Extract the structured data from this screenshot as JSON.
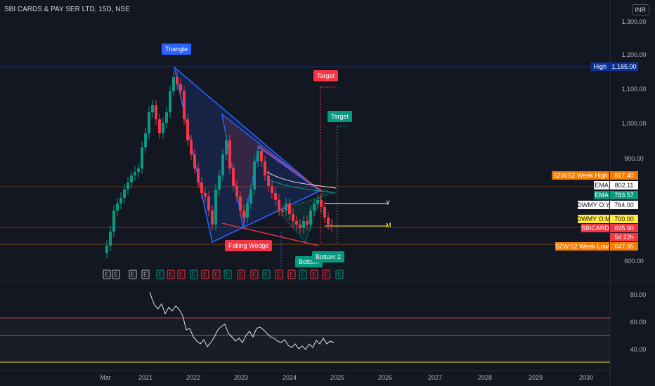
{
  "header": {
    "symbol_title": "SBI CARDS & PAY SER LTD, 15D, NSE",
    "currency": "INR"
  },
  "colors": {
    "background": "#131722",
    "up": "#089981",
    "down": "#f23645",
    "triangle": "#2962ff",
    "wedge": "#f23645",
    "target_red": "#f23645",
    "target_green": "#089981",
    "week52_high": "#f57c00",
    "week52_low": "#f57c00",
    "rsi_line": "#e0e3eb",
    "rsi_upper": "#f23645",
    "rsi_mid": "#4caf50",
    "rsi_lower": "#ffeb3b"
  },
  "price_axis": {
    "ticks": [
      "1,300.00",
      "1,200.00",
      "1,100.00",
      "1,000.00",
      "900.00",
      "600.00"
    ]
  },
  "rsi_axis": {
    "ticks": [
      "80.00",
      "60.00",
      "40.00"
    ]
  },
  "time_axis": {
    "labels": [
      "Mar",
      "2021",
      "2022",
      "2023",
      "2024",
      "2025",
      "2026",
      "2027",
      "2028",
      "2029",
      "2030"
    ]
  },
  "annotations": {
    "triangle": "Triangle",
    "falling_wedge": "Falling Wedge",
    "target_red": "Target",
    "target_green": "Target",
    "bottom1": "Bottom",
    "bottom2": "Bottom 2",
    "y_label": "Y",
    "m_label": "M"
  },
  "earnings_marker": "E",
  "price_labels": [
    {
      "name": "High",
      "value": "1,165.00",
      "color": "#0c3299"
    },
    {
      "name": "52W:52 Week High",
      "value": "817.40",
      "color": "#f57c00"
    },
    {
      "name": "EMA",
      "value": "802.11",
      "color": "#ffffff"
    },
    {
      "name": "EMA",
      "value": "783.57",
      "color": "#089981"
    },
    {
      "name": "DWMY O:Y",
      "value": "764.00",
      "color": "#ffffff"
    },
    {
      "name": "DWMY O:M",
      "value": "700.00",
      "color": "#ffeb3b"
    },
    {
      "name": "SBICARD",
      "value": "695.90",
      "color": "#f23645"
    },
    {
      "name": "",
      "value": "5d 22h",
      "color": "#f23645"
    },
    {
      "name": "52W:52 Week Low",
      "value": "647.95",
      "color": "#f57c00"
    }
  ]
}
